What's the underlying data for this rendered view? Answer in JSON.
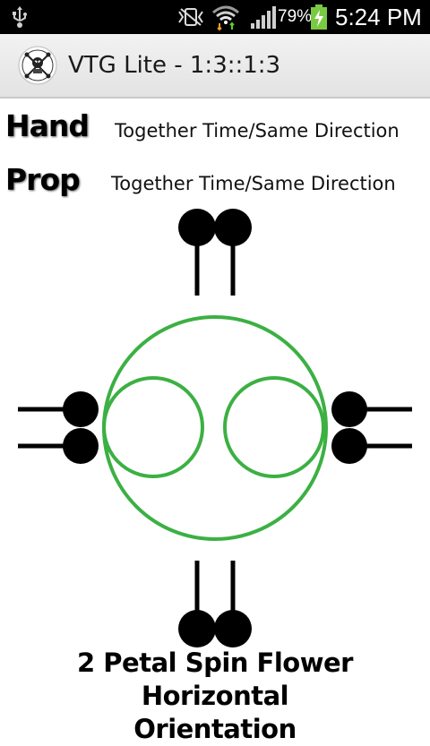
{
  "status_bar": {
    "battery_percent": "79%",
    "time": "5:24 PM",
    "icons": [
      "usb-icon",
      "vibrate-icon",
      "wifi-icon",
      "signal-icon",
      "battery-charging-icon"
    ]
  },
  "action_bar": {
    "title": "VTG Lite - 1:3::1:3",
    "logo_icon": "app-logo-icon"
  },
  "hand": {
    "label": "Hand",
    "value": "Together Time/Same Direction"
  },
  "prop": {
    "label": "Prop",
    "value": "Together Time/Same Direction"
  },
  "diagram": {
    "stroke_color": "#3cb043",
    "prop_color": "#000000"
  },
  "caption": {
    "line1": "2 Petal Spin Flower Horizontal",
    "line2": "Orientation"
  }
}
